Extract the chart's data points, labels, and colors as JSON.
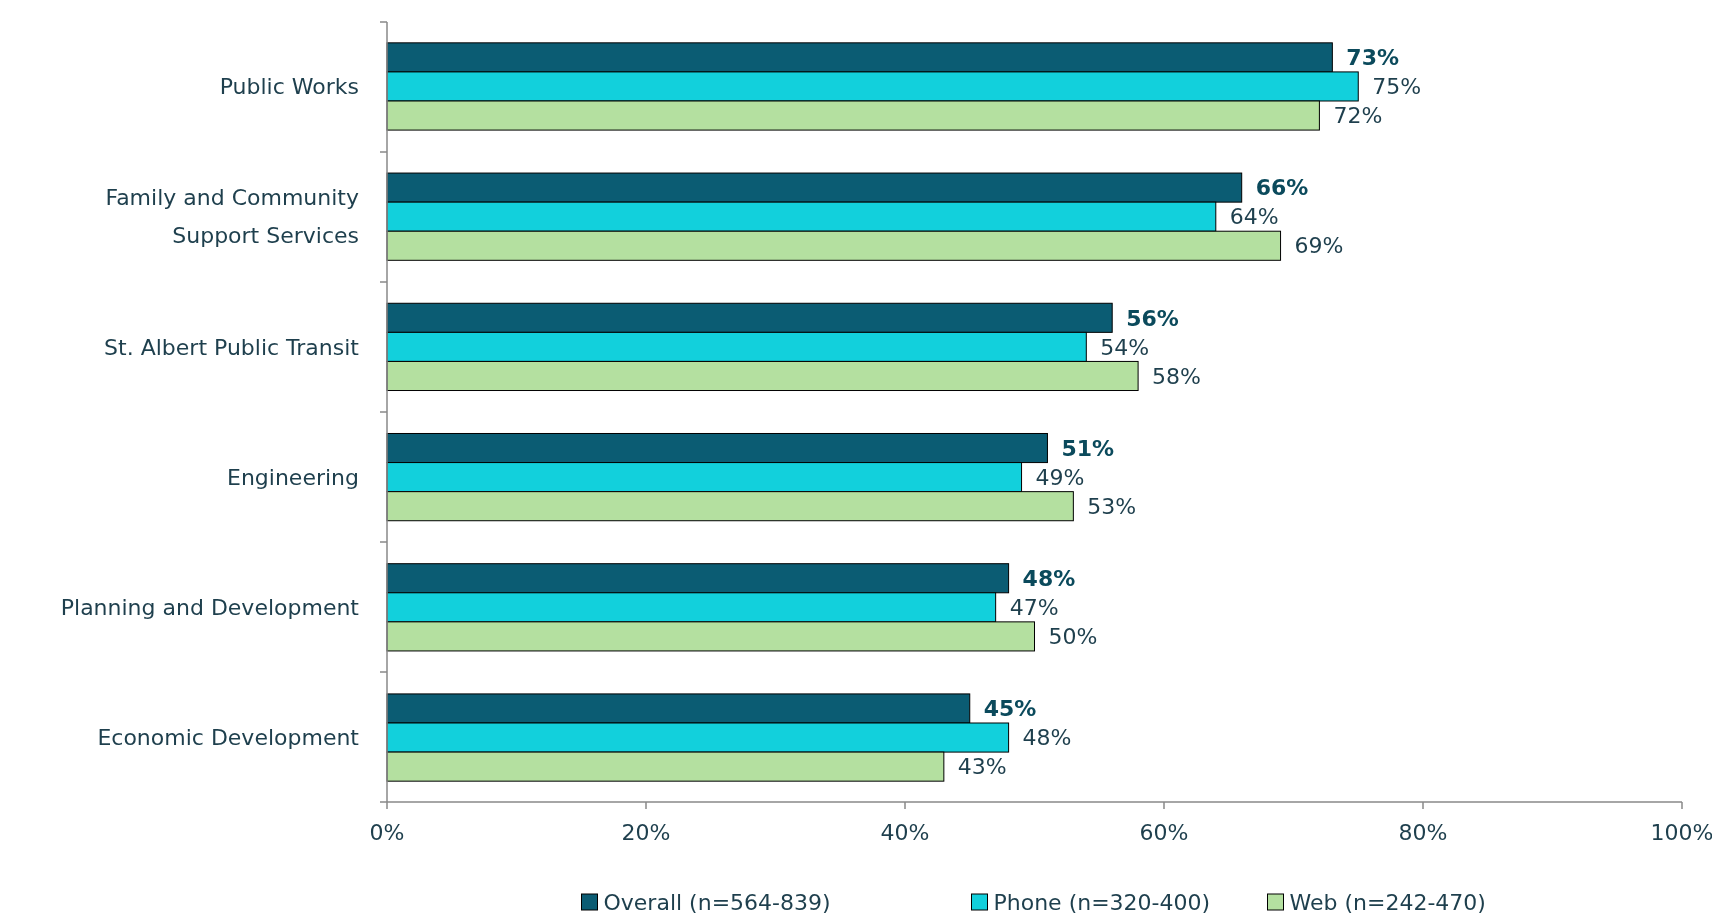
{
  "chart_data": {
    "type": "bar",
    "orientation": "horizontal",
    "categories": [
      "Public Works",
      "Family and Community Support Services",
      "St. Albert Public Transit",
      "Engineering",
      "Planning and Development",
      "Economic Development"
    ],
    "series": [
      {
        "name": "Overall (n=564-839)",
        "color": "#0b5c73",
        "values": [
          73,
          66,
          56,
          51,
          48,
          45
        ],
        "value_labels": [
          "73%",
          "66%",
          "56%",
          "51%",
          "48%",
          "45%"
        ]
      },
      {
        "name": "Phone (n=320-400)",
        "color": "#12d0dc",
        "values": [
          75,
          64,
          54,
          49,
          47,
          48
        ],
        "value_labels": [
          "75%",
          "64%",
          "54%",
          "49%",
          "47%",
          "48%"
        ]
      },
      {
        "name": "Web (n=242-470)",
        "color": "#b4e0a0",
        "values": [
          72,
          69,
          58,
          53,
          50,
          43
        ],
        "value_labels": [
          "72%",
          "69%",
          "58%",
          "53%",
          "50%",
          "43%"
        ]
      }
    ],
    "xlim": [
      0,
      100
    ],
    "xticks": [
      {
        "value": 0,
        "label": "0%"
      },
      {
        "value": 20,
        "label": "20%"
      },
      {
        "value": 40,
        "label": "40%"
      },
      {
        "value": 60,
        "label": "60%"
      },
      {
        "value": 80,
        "label": "80%"
      },
      {
        "value": 100,
        "label": "100%"
      }
    ],
    "legend": "bottom",
    "grid": false
  }
}
